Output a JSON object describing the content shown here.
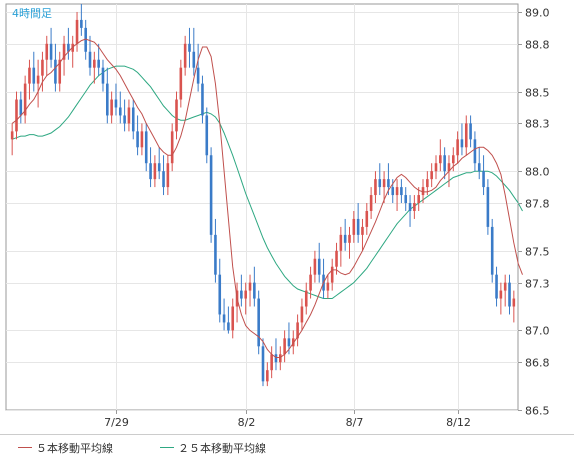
{
  "chart_data": {
    "type": "candlestick",
    "timeframe_label": "4時間足",
    "y_ticks": [
      89.0,
      88.8,
      88.5,
      88.3,
      88.0,
      87.8,
      87.5,
      87.3,
      87.0,
      86.8,
      86.5
    ],
    "y_tick_labels": [
      "89.0",
      "88.8",
      "88.5",
      "88.3",
      "88.0",
      "87.8",
      "87.5",
      "87.3",
      "87.0",
      "86.8",
      "86.5"
    ],
    "x_labels": [
      {
        "index": 24,
        "label": "7/29"
      },
      {
        "index": 54,
        "label": "8/2"
      },
      {
        "index": 79,
        "label": "8/7"
      },
      {
        "index": 103,
        "label": "8/12"
      }
    ],
    "legend": [
      {
        "label": "５本移動平均線",
        "color": "#c0504d"
      },
      {
        "label": "２５本移動平均線",
        "color": "#2ea882"
      }
    ],
    "colors": {
      "up": "#d9534f",
      "down": "#3a7bc8",
      "ma5": "#c0504d",
      "ma25": "#2ea882",
      "grid": "#e6e6e6",
      "axis": "#999999",
      "timeframe": "#2aa0d6"
    },
    "series": [
      {
        "name": "５本移動平均線",
        "values": [
          88.3,
          88.32,
          88.35,
          88.38,
          88.42,
          88.45,
          88.5,
          88.56,
          88.6,
          88.62,
          88.65,
          88.68,
          88.72,
          88.75,
          88.78,
          88.8,
          88.82,
          88.83,
          88.82,
          88.81,
          88.78,
          88.74,
          88.7,
          88.67,
          88.64,
          88.6,
          88.55,
          88.5,
          88.45,
          88.4,
          88.36,
          88.3,
          88.25,
          88.2,
          88.15,
          88.12,
          88.1,
          88.1,
          88.15,
          88.22,
          88.32,
          88.45,
          88.58,
          88.7,
          88.78,
          88.78,
          88.72,
          88.55,
          88.3,
          88.0,
          87.7,
          87.4,
          87.2,
          87.1,
          87.03,
          87.0,
          86.98,
          86.96,
          86.93,
          86.88,
          86.85,
          86.83,
          86.83,
          86.85,
          86.88,
          86.92,
          86.96,
          87.0,
          87.05,
          87.1,
          87.16,
          87.23,
          87.3,
          87.35,
          87.38,
          87.38,
          87.36,
          87.35,
          87.36,
          87.4,
          87.45,
          87.5,
          87.56,
          87.62,
          87.68,
          87.75,
          87.82,
          87.88,
          87.92,
          87.96,
          87.98,
          87.96,
          87.93,
          87.9,
          87.88,
          87.87,
          87.87,
          87.88,
          87.9,
          87.94,
          87.97,
          88.0,
          88.03,
          88.05,
          88.08,
          88.1,
          88.12,
          88.14,
          88.15,
          88.15,
          88.13,
          88.1,
          88.05,
          87.98,
          87.85,
          87.7,
          87.55,
          87.42,
          87.35
        ]
      },
      {
        "name": "２５本移動平均線",
        "values": [
          88.2,
          88.21,
          88.22,
          88.22,
          88.23,
          88.23,
          88.22,
          88.22,
          88.23,
          88.24,
          88.26,
          88.28,
          88.31,
          88.34,
          88.38,
          88.42,
          88.46,
          88.5,
          88.54,
          88.57,
          88.6,
          88.62,
          88.64,
          88.65,
          88.66,
          88.66,
          88.66,
          88.65,
          88.64,
          88.62,
          88.59,
          88.56,
          88.53,
          88.49,
          88.45,
          88.41,
          88.38,
          88.35,
          88.33,
          88.32,
          88.32,
          88.33,
          88.34,
          88.35,
          88.36,
          88.37,
          88.36,
          88.34,
          88.3,
          88.24,
          88.17,
          88.1,
          88.02,
          87.94,
          87.86,
          87.79,
          87.72,
          87.65,
          87.58,
          87.52,
          87.47,
          87.42,
          87.38,
          87.34,
          87.31,
          87.28,
          87.26,
          87.25,
          87.24,
          87.23,
          87.22,
          87.21,
          87.2,
          87.2,
          87.2,
          87.22,
          87.24,
          87.26,
          87.28,
          87.3,
          87.33,
          87.36,
          87.39,
          87.43,
          87.47,
          87.51,
          87.55,
          87.59,
          87.63,
          87.67,
          87.7,
          87.73,
          87.76,
          87.78,
          87.8,
          87.82,
          87.84,
          87.86,
          87.88,
          87.9,
          87.92,
          87.94,
          87.96,
          87.97,
          87.98,
          87.99,
          87.99,
          88.0,
          88.0,
          88.0,
          88.0,
          87.99,
          87.97,
          87.94,
          87.91,
          87.88,
          87.84,
          87.8,
          87.75
        ]
      }
    ],
    "candles": [
      [
        88.2,
        88.3,
        88.1,
        88.25
      ],
      [
        88.25,
        88.5,
        88.2,
        88.45
      ],
      [
        88.45,
        88.5,
        88.3,
        88.35
      ],
      [
        88.35,
        88.6,
        88.3,
        88.55
      ],
      [
        88.55,
        88.7,
        88.45,
        88.65
      ],
      [
        88.65,
        88.75,
        88.5,
        88.55
      ],
      [
        88.55,
        88.7,
        88.4,
        88.6
      ],
      [
        88.6,
        88.75,
        88.5,
        88.7
      ],
      [
        88.7,
        88.85,
        88.6,
        88.8
      ],
      [
        88.8,
        88.9,
        88.65,
        88.7
      ],
      [
        88.7,
        88.8,
        88.5,
        88.55
      ],
      [
        88.55,
        88.75,
        88.5,
        88.7
      ],
      [
        88.7,
        88.85,
        88.6,
        88.8
      ],
      [
        88.8,
        88.9,
        88.7,
        88.75
      ],
      [
        88.75,
        88.85,
        88.65,
        88.8
      ],
      [
        88.8,
        89.0,
        88.75,
        88.95
      ],
      [
        88.95,
        89.05,
        88.85,
        88.9
      ],
      [
        88.9,
        88.95,
        88.7,
        88.75
      ],
      [
        88.75,
        88.85,
        88.6,
        88.65
      ],
      [
        88.65,
        88.75,
        88.55,
        88.7
      ],
      [
        88.7,
        88.8,
        88.6,
        88.65
      ],
      [
        88.65,
        88.7,
        88.5,
        88.55
      ],
      [
        88.55,
        88.65,
        88.3,
        88.35
      ],
      [
        88.35,
        88.5,
        88.3,
        88.45
      ],
      [
        88.45,
        88.55,
        88.35,
        88.4
      ],
      [
        88.4,
        88.5,
        88.3,
        88.35
      ],
      [
        88.35,
        88.45,
        88.25,
        88.3
      ],
      [
        88.3,
        88.45,
        88.25,
        88.4
      ],
      [
        88.4,
        88.45,
        88.2,
        88.25
      ],
      [
        88.25,
        88.35,
        88.1,
        88.15
      ],
      [
        88.15,
        88.3,
        88.1,
        88.25
      ],
      [
        88.25,
        88.3,
        88.0,
        88.05
      ],
      [
        88.05,
        88.15,
        87.9,
        87.95
      ],
      [
        87.95,
        88.1,
        87.9,
        88.05
      ],
      [
        88.05,
        88.15,
        87.95,
        88.0
      ],
      [
        88.0,
        88.1,
        87.85,
        87.9
      ],
      [
        87.9,
        88.1,
        87.85,
        88.05
      ],
      [
        88.05,
        88.3,
        88.0,
        88.25
      ],
      [
        88.25,
        88.5,
        88.2,
        88.45
      ],
      [
        88.45,
        88.7,
        88.4,
        88.65
      ],
      [
        88.65,
        88.85,
        88.6,
        88.8
      ],
      [
        88.8,
        88.9,
        88.65,
        88.75
      ],
      [
        88.75,
        88.9,
        88.6,
        88.65
      ],
      [
        88.65,
        88.8,
        88.5,
        88.55
      ],
      [
        88.55,
        88.6,
        88.3,
        88.35
      ],
      [
        88.35,
        88.4,
        88.05,
        88.1
      ],
      [
        88.1,
        88.15,
        87.55,
        87.6
      ],
      [
        87.6,
        87.7,
        87.3,
        87.35
      ],
      [
        87.35,
        87.45,
        87.05,
        87.1
      ],
      [
        87.1,
        87.2,
        87.0,
        87.05
      ],
      [
        87.05,
        87.15,
        86.98,
        87.0
      ],
      [
        87.0,
        87.2,
        86.95,
        87.15
      ],
      [
        87.15,
        87.3,
        87.05,
        87.25
      ],
      [
        87.25,
        87.35,
        87.15,
        87.2
      ],
      [
        87.2,
        87.3,
        87.1,
        87.25
      ],
      [
        87.25,
        87.35,
        87.15,
        87.3
      ],
      [
        87.3,
        87.4,
        87.15,
        87.2
      ],
      [
        87.2,
        87.25,
        86.85,
        86.9
      ],
      [
        86.9,
        86.95,
        86.65,
        86.68
      ],
      [
        86.68,
        86.8,
        86.65,
        86.75
      ],
      [
        86.75,
        86.9,
        86.7,
        86.85
      ],
      [
        86.85,
        86.95,
        86.75,
        86.8
      ],
      [
        86.8,
        86.9,
        86.75,
        86.85
      ],
      [
        86.85,
        87.0,
        86.8,
        86.95
      ],
      [
        86.95,
        87.05,
        86.85,
        86.9
      ],
      [
        86.9,
        87.0,
        86.85,
        86.95
      ],
      [
        86.95,
        87.1,
        86.9,
        87.05
      ],
      [
        87.05,
        87.2,
        87.0,
        87.15
      ],
      [
        87.15,
        87.3,
        87.1,
        87.25
      ],
      [
        87.25,
        87.4,
        87.2,
        87.35
      ],
      [
        87.35,
        87.5,
        87.3,
        87.45
      ],
      [
        87.45,
        87.55,
        87.3,
        87.35
      ],
      [
        87.35,
        87.45,
        87.2,
        87.25
      ],
      [
        87.25,
        87.35,
        87.2,
        87.3
      ],
      [
        87.3,
        87.45,
        87.25,
        87.4
      ],
      [
        87.4,
        87.55,
        87.35,
        87.5
      ],
      [
        87.5,
        87.65,
        87.4,
        87.6
      ],
      [
        87.6,
        87.7,
        87.5,
        87.55
      ],
      [
        87.55,
        87.65,
        87.45,
        87.6
      ],
      [
        87.6,
        87.75,
        87.55,
        87.7
      ],
      [
        87.7,
        87.8,
        87.55,
        87.6
      ],
      [
        87.6,
        87.7,
        87.5,
        87.65
      ],
      [
        87.65,
        87.8,
        87.6,
        87.75
      ],
      [
        87.75,
        87.9,
        87.7,
        87.85
      ],
      [
        87.85,
        88.0,
        87.8,
        87.95
      ],
      [
        87.95,
        88.05,
        87.85,
        87.9
      ],
      [
        87.9,
        88.0,
        87.8,
        87.95
      ],
      [
        87.95,
        88.05,
        87.85,
        87.9
      ],
      [
        87.9,
        87.95,
        87.8,
        87.85
      ],
      [
        87.85,
        87.95,
        87.75,
        87.9
      ],
      [
        87.9,
        87.95,
        87.8,
        87.85
      ],
      [
        87.85,
        87.9,
        87.75,
        87.8
      ],
      [
        87.8,
        87.85,
        87.65,
        87.75
      ],
      [
        87.75,
        87.85,
        87.7,
        87.8
      ],
      [
        87.8,
        87.9,
        87.75,
        87.85
      ],
      [
        87.85,
        87.95,
        87.8,
        87.9
      ],
      [
        87.9,
        88.0,
        87.85,
        87.95
      ],
      [
        87.95,
        88.05,
        87.9,
        88.0
      ],
      [
        88.0,
        88.1,
        87.95,
        88.05
      ],
      [
        88.05,
        88.2,
        88.0,
        88.1
      ],
      [
        88.1,
        88.15,
        87.95,
        88.0
      ],
      [
        88.0,
        88.1,
        87.9,
        88.05
      ],
      [
        88.05,
        88.15,
        88.0,
        88.1
      ],
      [
        88.1,
        88.25,
        88.05,
        88.2
      ],
      [
        88.2,
        88.3,
        88.1,
        88.15
      ],
      [
        88.15,
        88.35,
        88.1,
        88.3
      ],
      [
        88.3,
        88.35,
        88.15,
        88.2
      ],
      [
        88.2,
        88.25,
        88.0,
        88.05
      ],
      [
        88.05,
        88.15,
        87.95,
        88.0
      ],
      [
        88.0,
        88.1,
        87.85,
        87.9
      ],
      [
        87.9,
        87.95,
        87.6,
        87.65
      ],
      [
        87.65,
        87.7,
        87.3,
        87.35
      ],
      [
        87.35,
        87.4,
        87.15,
        87.2
      ],
      [
        87.2,
        87.3,
        87.1,
        87.25
      ],
      [
        87.25,
        87.35,
        87.15,
        87.3
      ],
      [
        87.3,
        87.35,
        87.1,
        87.15
      ],
      [
        87.15,
        87.25,
        87.05,
        87.2
      ]
    ]
  }
}
